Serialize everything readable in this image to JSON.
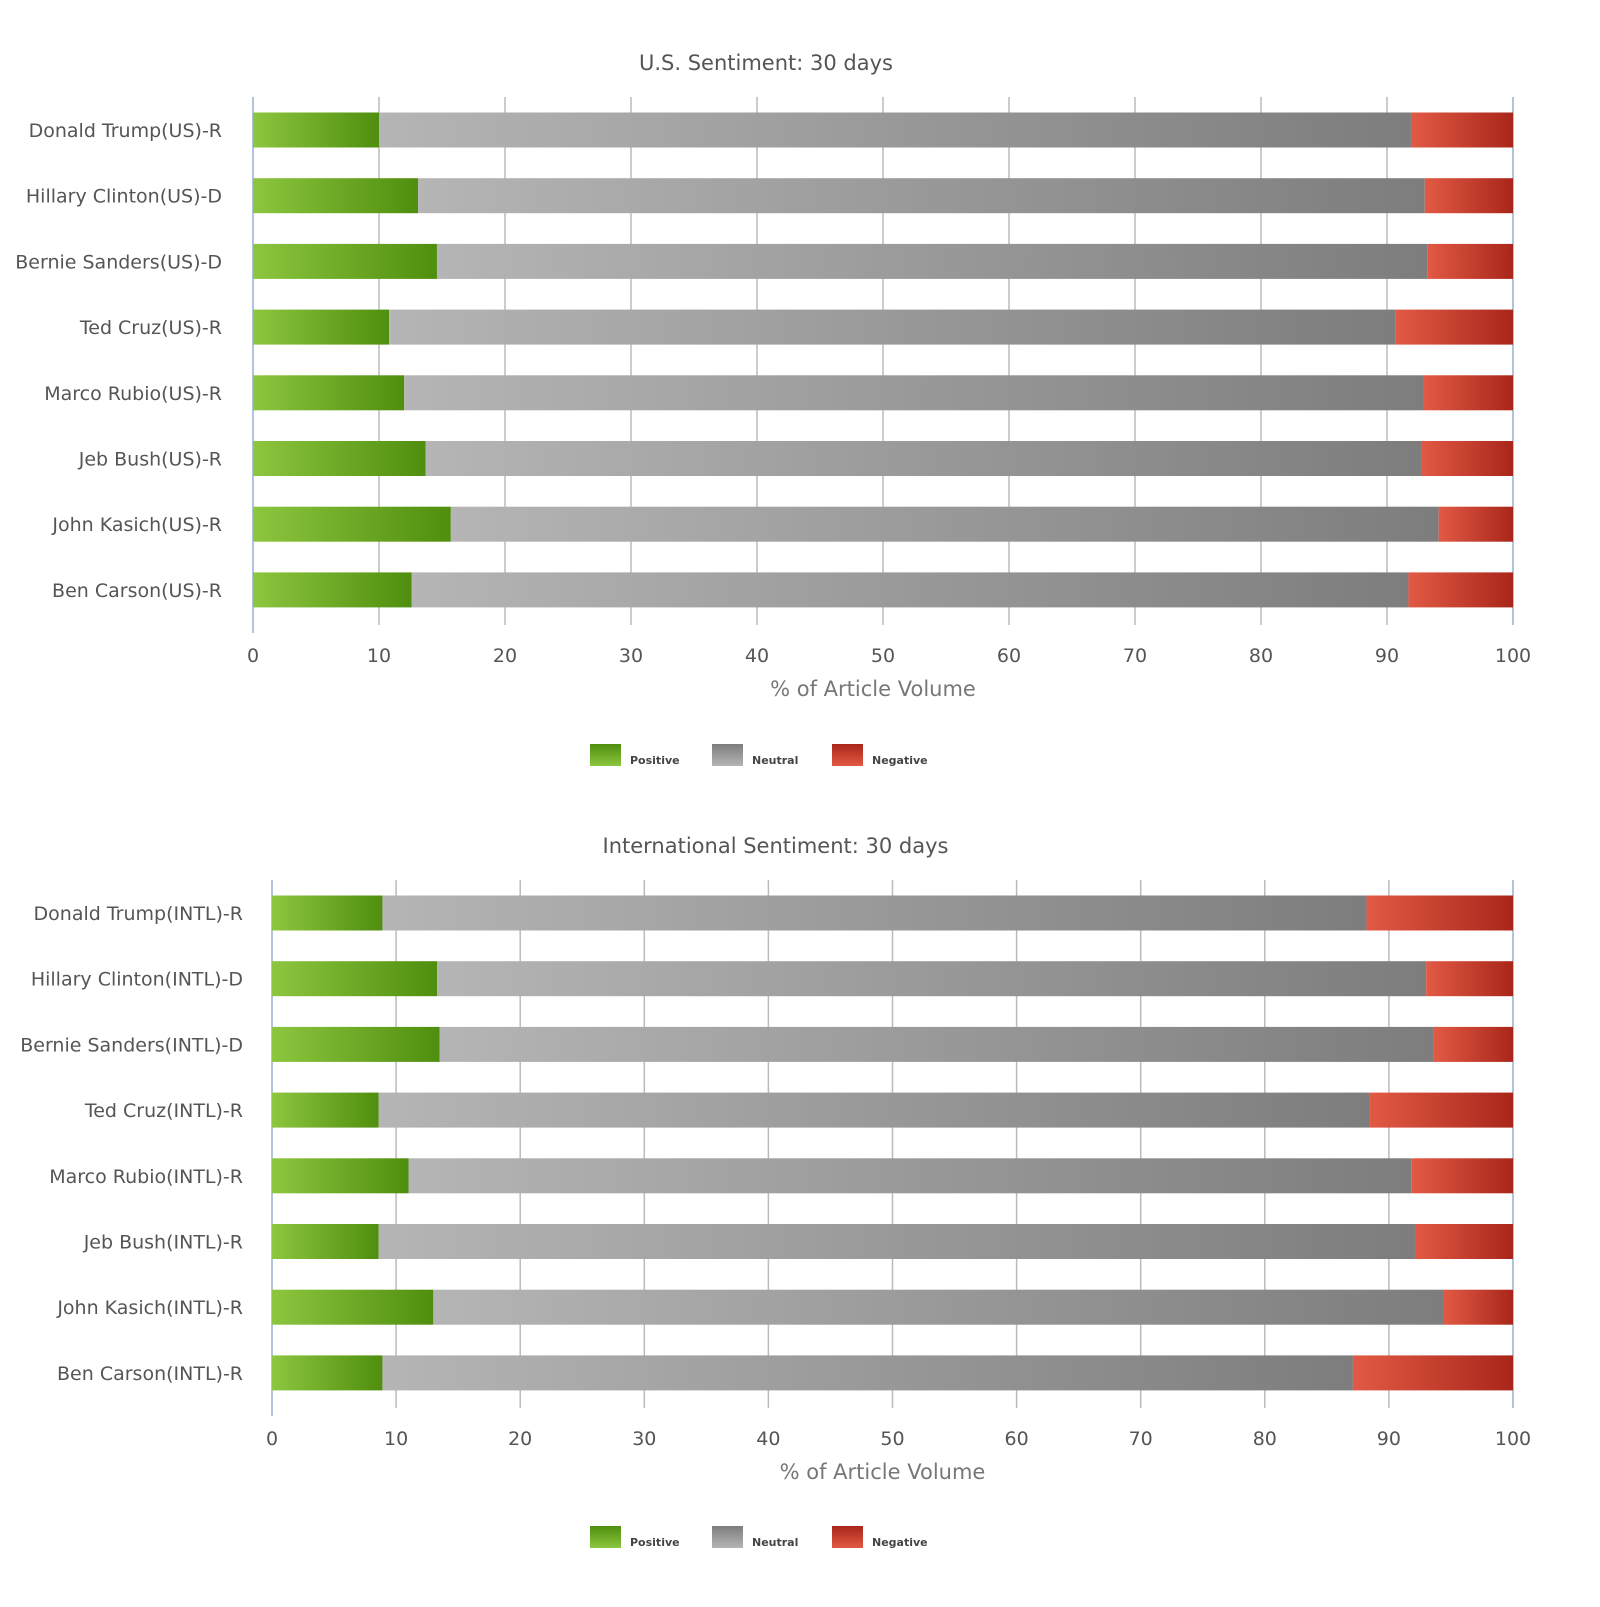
{
  "colors": {
    "positive_light": "#8dc63f",
    "positive_dark": "#4f8e0e",
    "neutral_light": "#b5b5b5",
    "neutral_dark": "#7d7d7d",
    "negative_light": "#e25a45",
    "negative_dark": "#a9261a",
    "grid": "#bbbbbb",
    "axis": "#b0c4de"
  },
  "chart_data": [
    {
      "type": "bar",
      "orientation": "horizontal",
      "stacked": true,
      "title": "U.S. Sentiment: 30 days",
      "xlabel": "% of Article Volume",
      "xlim": [
        0,
        100
      ],
      "xticks": [
        "0",
        "10",
        "20",
        "30",
        "40",
        "50",
        "60",
        "70",
        "80",
        "90",
        "100"
      ],
      "legend": [
        "Positive",
        "Neutral",
        "Negative"
      ],
      "legend_position": "bottom-center",
      "categories": [
        "Donald Trump(US)-R",
        "Hillary Clinton(US)-D",
        "Bernie Sanders(US)-D",
        "Ted Cruz(US)-R",
        "Marco Rubio(US)-R",
        "Jeb Bush(US)-R",
        "John Kasich(US)-R",
        "Ben Carson(US)-R"
      ],
      "series": [
        {
          "name": "Positive",
          "values": [
            10.0,
            13.1,
            14.6,
            10.8,
            12.0,
            13.7,
            15.7,
            12.6
          ]
        },
        {
          "name": "Neutral",
          "values": [
            81.9,
            79.9,
            78.6,
            79.9,
            80.9,
            79.0,
            78.4,
            79.1
          ]
        },
        {
          "name": "Negative",
          "values": [
            8.1,
            7.0,
            6.8,
            9.3,
            7.1,
            7.3,
            5.9,
            8.3
          ]
        }
      ]
    },
    {
      "type": "bar",
      "orientation": "horizontal",
      "stacked": true,
      "title": "International Sentiment: 30 days",
      "xlabel": "% of Article Volume",
      "xlim": [
        0,
        100
      ],
      "xticks": [
        "0",
        "10",
        "20",
        "30",
        "40",
        "50",
        "60",
        "70",
        "80",
        "90",
        "100"
      ],
      "legend": [
        "Positive",
        "Neutral",
        "Negative"
      ],
      "legend_position": "bottom-center",
      "categories": [
        "Donald Trump(INTL)-R",
        "Hillary Clinton(INTL)-D",
        "Bernie Sanders(INTL)-D",
        "Ted Cruz(INTL)-R",
        "Marco Rubio(INTL)-R",
        "Jeb Bush(INTL)-R",
        "John Kasich(INTL)-R",
        "Ben Carson(INTL)-R"
      ],
      "series": [
        {
          "name": "Positive",
          "values": [
            8.9,
            13.3,
            13.5,
            8.6,
            11.0,
            8.6,
            13.0,
            8.9
          ]
        },
        {
          "name": "Neutral",
          "values": [
            79.3,
            79.7,
            80.1,
            79.8,
            80.8,
            83.5,
            81.4,
            78.2
          ]
        },
        {
          "name": "Negative",
          "values": [
            11.8,
            7.0,
            6.4,
            11.6,
            8.2,
            7.9,
            5.6,
            12.9
          ]
        }
      ]
    }
  ]
}
